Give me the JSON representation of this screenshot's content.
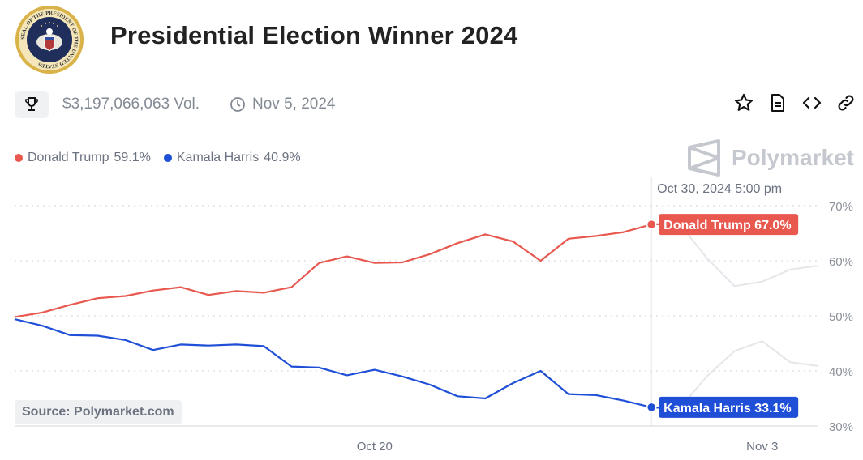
{
  "header": {
    "title": "Presidential Election Winner 2024",
    "seal_text": "SEAL OF THE PRESIDENT OF THE UNITED STATES",
    "volume": "$3,197,066,063 Vol.",
    "end_date": "Nov 5, 2024",
    "icons": [
      "trophy-icon",
      "clock-icon",
      "star-icon",
      "document-icon",
      "embed-code-icon",
      "link-icon"
    ]
  },
  "legend": [
    {
      "name": "Donald Trump",
      "value": "59.1%",
      "color": "#e8584f"
    },
    {
      "name": "Kamala Harris",
      "value": "40.9%",
      "color": "#1f4fd6"
    }
  ],
  "brand": "Polymarket",
  "source": "Source: Polymarket.com",
  "hover": {
    "date_label": "Oct 30, 2024 5:00 pm",
    "trump_label": "Donald Trump 67.0%",
    "harris_label": "Kamala Harris 33.1%"
  },
  "chart_data": {
    "type": "line",
    "x_domain": [
      "2024-10-07",
      "2024-11-05"
    ],
    "hover_date": "2024-10-30",
    "yticks": [
      30,
      40,
      50,
      60,
      70
    ],
    "ytick_labels": [
      "30%",
      "40%",
      "50%",
      "60%",
      "70%"
    ],
    "ylim": [
      30,
      72
    ],
    "xticks": [
      {
        "date": "2024-10-20",
        "label": "Oct 20"
      },
      {
        "date": "2024-11-03",
        "label": "Nov 3"
      }
    ],
    "grid": true,
    "legend_position": "top-left",
    "series": [
      {
        "name": "Donald Trump",
        "color": "#e8584f",
        "points": [
          [
            "2024-10-07",
            49.8
          ],
          [
            "2024-10-08",
            50.6
          ],
          [
            "2024-10-09",
            52.0
          ],
          [
            "2024-10-10",
            53.2
          ],
          [
            "2024-10-11",
            53.6
          ],
          [
            "2024-10-12",
            54.6
          ],
          [
            "2024-10-13",
            55.2
          ],
          [
            "2024-10-14",
            53.8
          ],
          [
            "2024-10-15",
            54.5
          ],
          [
            "2024-10-16",
            54.2
          ],
          [
            "2024-10-17",
            55.2
          ],
          [
            "2024-10-18",
            59.6
          ],
          [
            "2024-10-19",
            60.8
          ],
          [
            "2024-10-20",
            59.6
          ],
          [
            "2024-10-21",
            59.7
          ],
          [
            "2024-10-22",
            61.2
          ],
          [
            "2024-10-23",
            63.2
          ],
          [
            "2024-10-24",
            64.8
          ],
          [
            "2024-10-25",
            63.5
          ],
          [
            "2024-10-26",
            60.0
          ],
          [
            "2024-10-27",
            64.0
          ],
          [
            "2024-10-28",
            64.5
          ],
          [
            "2024-10-29",
            65.2
          ],
          [
            "2024-10-30",
            66.6
          ],
          [
            "2024-10-31",
            66.8
          ],
          [
            "2024-11-01",
            60.5
          ],
          [
            "2024-11-02",
            55.4
          ],
          [
            "2024-11-03",
            56.2
          ],
          [
            "2024-11-04",
            58.4
          ],
          [
            "2024-11-05",
            59.1
          ]
        ]
      },
      {
        "name": "Kamala Harris",
        "color": "#1f4fd6",
        "points": [
          [
            "2024-10-07",
            49.4
          ],
          [
            "2024-10-08",
            48.2
          ],
          [
            "2024-10-09",
            46.5
          ],
          [
            "2024-10-10",
            46.4
          ],
          [
            "2024-10-11",
            45.6
          ],
          [
            "2024-10-12",
            43.8
          ],
          [
            "2024-10-13",
            44.8
          ],
          [
            "2024-10-14",
            44.6
          ],
          [
            "2024-10-15",
            44.8
          ],
          [
            "2024-10-16",
            44.5
          ],
          [
            "2024-10-17",
            40.8
          ],
          [
            "2024-10-18",
            40.6
          ],
          [
            "2024-10-19",
            39.2
          ],
          [
            "2024-10-20",
            40.2
          ],
          [
            "2024-10-21",
            39.0
          ],
          [
            "2024-10-22",
            37.5
          ],
          [
            "2024-10-23",
            35.4
          ],
          [
            "2024-10-24",
            35.0
          ],
          [
            "2024-10-25",
            37.8
          ],
          [
            "2024-10-26",
            40.0
          ],
          [
            "2024-10-27",
            35.8
          ],
          [
            "2024-10-28",
            35.6
          ],
          [
            "2024-10-29",
            34.6
          ],
          [
            "2024-10-30",
            33.4
          ],
          [
            "2024-10-31",
            33.1
          ],
          [
            "2024-11-01",
            39.0
          ],
          [
            "2024-11-02",
            43.6
          ],
          [
            "2024-11-03",
            45.4
          ],
          [
            "2024-11-04",
            41.6
          ],
          [
            "2024-11-05",
            40.9
          ]
        ]
      }
    ]
  }
}
